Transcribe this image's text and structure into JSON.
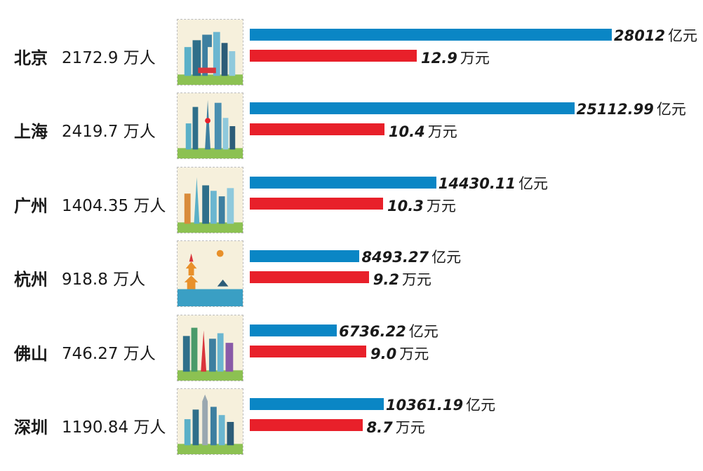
{
  "chart_data": {
    "type": "bar",
    "categories": [
      "北京",
      "上海",
      "广州",
      "杭州",
      "佛山",
      "深圳"
    ],
    "population_labels": [
      "2172.9 万人",
      "2419.7 万人",
      "1404.35 万人",
      "918.8 万人",
      "746.27 万人",
      "1190.84 万人"
    ],
    "series": [
      {
        "values": [
          28012,
          25112.99,
          14430.11,
          8493.27,
          6736.22,
          10361.19
        ],
        "value_labels": [
          "28012",
          "25112.99",
          "14430.11",
          "8493.27",
          "6736.22",
          "10361.19"
        ],
        "unit": "亿元",
        "color": "#0a86c5"
      },
      {
        "values": [
          12.9,
          10.4,
          10.3,
          9.2,
          9.0,
          8.7
        ],
        "value_labels": [
          "12.9",
          "10.4",
          "10.3",
          "9.2",
          "9.0",
          "8.7"
        ],
        "unit": "万元",
        "color": "#e8202a"
      }
    ],
    "title": "",
    "xlabel": "",
    "ylabel": "",
    "grid": false
  },
  "thumbnails": [
    "beijing-skyline-icon",
    "shanghai-skyline-icon",
    "guangzhou-skyline-icon",
    "hangzhou-pagoda-icon",
    "foshan-skyline-icon",
    "shenzhen-skyline-icon"
  ]
}
